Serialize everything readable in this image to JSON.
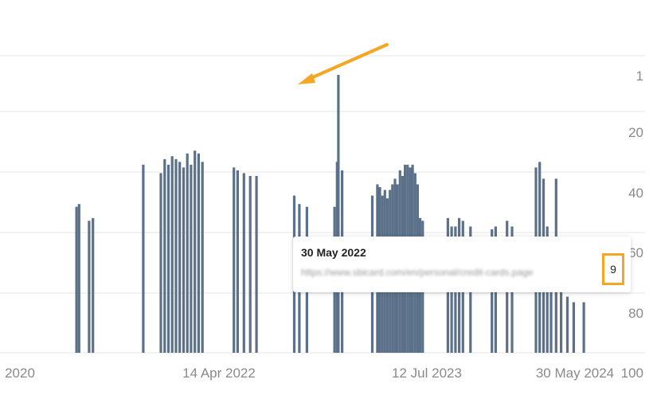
{
  "chart_data": {
    "type": "bar",
    "title": "",
    "y_axis": {
      "position": "right",
      "reversed": true,
      "ticks": [
        1,
        20,
        40,
        60,
        80,
        100
      ],
      "range": [
        1,
        100
      ]
    },
    "x_axis": {
      "tick_labels": [
        "2020",
        "14 Apr 2022",
        "12 Jul 2023",
        "30 May 2024"
      ]
    },
    "series_color": "#5b7089",
    "grid": true,
    "bars": [
      [
        2020.45,
        48
      ],
      [
        2020.47,
        47
      ],
      [
        2020.55,
        53
      ],
      [
        2020.58,
        52
      ],
      [
        2020.98,
        33
      ],
      [
        2021.12,
        36
      ],
      [
        2021.15,
        31
      ],
      [
        2021.18,
        33
      ],
      [
        2021.21,
        30
      ],
      [
        2021.24,
        31
      ],
      [
        2021.27,
        32
      ],
      [
        2021.3,
        34
      ],
      [
        2021.33,
        29
      ],
      [
        2021.36,
        33
      ],
      [
        2021.39,
        28
      ],
      [
        2021.42,
        29
      ],
      [
        2021.45,
        32
      ],
      [
        2021.7,
        34
      ],
      [
        2021.73,
        35
      ],
      [
        2021.78,
        36
      ],
      [
        2021.83,
        37
      ],
      [
        2021.88,
        37
      ],
      [
        2022.18,
        44
      ],
      [
        2022.22,
        47
      ],
      [
        2022.28,
        48
      ],
      [
        2022.5,
        48
      ],
      [
        2022.52,
        32
      ],
      [
        2022.53,
        1
      ],
      [
        2022.56,
        35
      ],
      [
        2022.8,
        44
      ],
      [
        2022.84,
        40
      ],
      [
        2022.86,
        41
      ],
      [
        2022.88,
        44
      ],
      [
        2022.9,
        42
      ],
      [
        2022.92,
        45
      ],
      [
        2022.94,
        42
      ],
      [
        2022.96,
        40
      ],
      [
        2022.98,
        38
      ],
      [
        2023.0,
        40
      ],
      [
        2023.02,
        35
      ],
      [
        2023.04,
        37
      ],
      [
        2023.06,
        33
      ],
      [
        2023.08,
        33
      ],
      [
        2023.1,
        34
      ],
      [
        2023.12,
        33
      ],
      [
        2023.14,
        36
      ],
      [
        2023.16,
        40
      ],
      [
        2023.18,
        52
      ],
      [
        2023.2,
        53
      ],
      [
        2023.4,
        52
      ],
      [
        2023.43,
        55
      ],
      [
        2023.46,
        55
      ],
      [
        2023.49,
        52
      ],
      [
        2023.52,
        53
      ],
      [
        2023.58,
        55
      ],
      [
        2023.75,
        56
      ],
      [
        2023.78,
        55
      ],
      [
        2023.87,
        53
      ],
      [
        2023.91,
        55
      ],
      [
        2024.1,
        34
      ],
      [
        2024.13,
        32
      ],
      [
        2024.16,
        38
      ],
      [
        2024.19,
        55
      ],
      [
        2024.22,
        72
      ],
      [
        2024.26,
        38
      ],
      [
        2024.3,
        75
      ],
      [
        2024.35,
        80
      ],
      [
        2024.4,
        82
      ],
      [
        2024.48,
        82
      ]
    ]
  },
  "tooltip": {
    "date": "30 May 2022",
    "url": "https://www.sbicard.com/en/personal/credit-cards.page",
    "value": "9"
  },
  "annotation": {
    "type": "arrow",
    "color": "#f5a623"
  }
}
